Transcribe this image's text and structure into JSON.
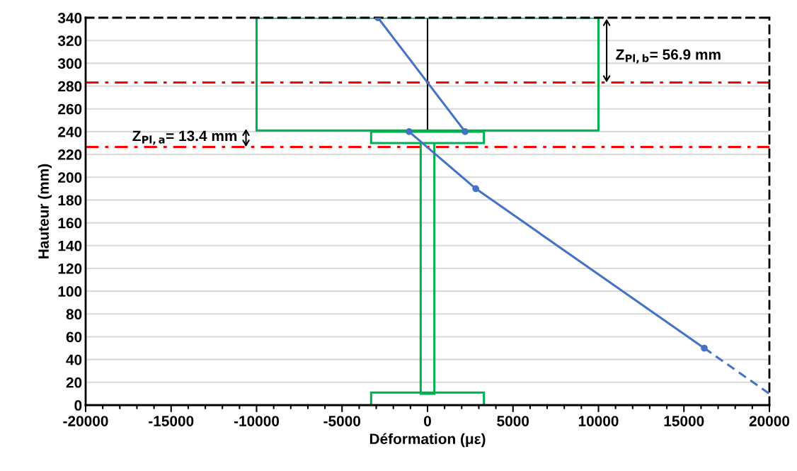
{
  "chart_data": {
    "type": "line",
    "xlabel": "Déformation (με)",
    "ylabel": "Hauteur (mm)",
    "xlim": [
      -20000,
      20000
    ],
    "xticks": [
      -20000,
      -15000,
      -10000,
      -5000,
      0,
      5000,
      10000,
      15000,
      20000
    ],
    "ylim": [
      0,
      340
    ],
    "yticks": [
      0,
      20,
      40,
      60,
      80,
      100,
      120,
      140,
      160,
      180,
      200,
      220,
      240,
      260,
      280,
      300,
      320,
      340
    ],
    "grid": "y",
    "legend": false,
    "series": [
      {
        "color": "#4472c4",
        "marker": "circle",
        "x": [
          -2900,
          2200
        ],
        "values": [
          340,
          240
        ]
      },
      {
        "color": "#4472c4",
        "marker": "circle",
        "x": [
          -1080,
          2820,
          16190
        ],
        "values": [
          240,
          190,
          50
        ]
      },
      {
        "color": "#4472c4",
        "marker": "none",
        "line_style": "dashed",
        "x": [
          16190,
          20000
        ],
        "values": [
          50,
          10
        ]
      }
    ],
    "ref_lines": [
      {
        "axis": "y",
        "value": 283.1,
        "color": "#ff0000",
        "line_style": "dashdot"
      },
      {
        "axis": "y",
        "value": 226.6,
        "color": "#ff0000",
        "line_style": "dashdot"
      }
    ],
    "annotations": [
      "Z$_{Pl,b}$= 56.9 mm",
      "Z$_{Pl,a}$= 13.4 mm"
    ]
  }
}
